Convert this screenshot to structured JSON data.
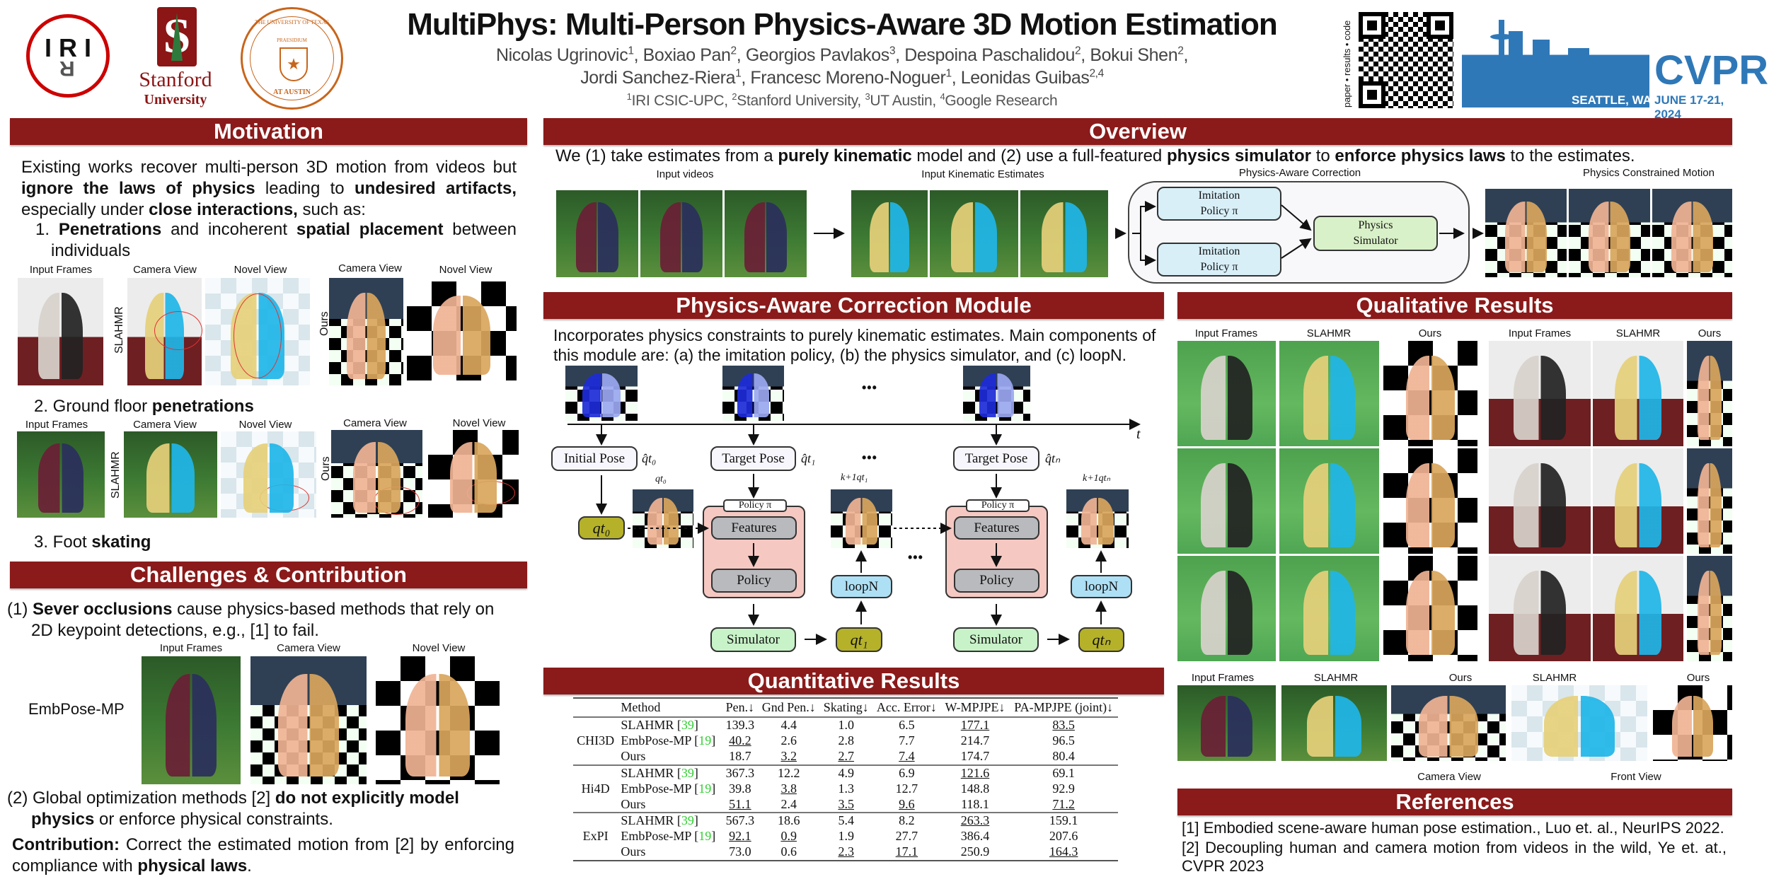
{
  "header": {
    "title": "MultiPhys: Multi-Person Physics-Aware 3D Motion Estimation",
    "authors_line1": [
      {
        "t": "Nicolas Ugrinovic"
      },
      {
        "t": "1",
        "sup": true
      },
      {
        "t": ", Boxiao Pan"
      },
      {
        "t": "2",
        "sup": true
      },
      {
        "t": ", Georgios Pavlakos"
      },
      {
        "t": "3",
        "sup": true
      },
      {
        "t": ", Despoina Paschalidou"
      },
      {
        "t": "2",
        "sup": true
      },
      {
        "t": ", Bokui Shen"
      },
      {
        "t": "2",
        "sup": true
      },
      {
        "t": ","
      }
    ],
    "authors_line2": [
      {
        "t": "Jordi Sanchez-Riera"
      },
      {
        "t": "1",
        "sup": true
      },
      {
        "t": ", Francesc Moreno-Noguer"
      },
      {
        "t": "1",
        "sup": true
      },
      {
        "t": ", Leonidas Guibas"
      },
      {
        "t": "2,4",
        "sup": true
      }
    ],
    "affiliations": [
      {
        "t": "1",
        "sup": true
      },
      {
        "t": "IRI CSIC-UPC, "
      },
      {
        "t": "2",
        "sup": true
      },
      {
        "t": "Stanford University, "
      },
      {
        "t": "3",
        "sup": true
      },
      {
        "t": "UT Austin, "
      },
      {
        "t": "4",
        "sup": true
      },
      {
        "t": "Google Research"
      }
    ],
    "logos": {
      "iri": "IRI",
      "stanford_line1": "Stanford",
      "stanford_line2": "University",
      "ut_ring": "THE UNIVERSITY OF TEXAS",
      "ut_bottom": "AT AUSTIN",
      "ut_motto": "PRAESIDIUM"
    },
    "qr_caption": "paper • results • code",
    "cvpr": {
      "name": "CVPR",
      "city": "SEATTLE, WA",
      "dates": "JUNE 17-21, 2024"
    },
    "colors": {
      "section_bar": "#8b1a1a",
      "cvpr_blue": "#2f78b8",
      "stanford_red": "#8c1515",
      "ut_orange": "#c8651b"
    }
  },
  "motivation": {
    "title": "Motivation",
    "intro": [
      {
        "t": "Existing works recover multi-person 3D motion from videos but "
      },
      {
        "t": "ignore the laws of physics",
        "b": true
      },
      {
        "t": " leading to "
      },
      {
        "t": "undesired artifacts,",
        "b": true
      },
      {
        "t": " especially under "
      },
      {
        "t": "close interactions,",
        "b": true
      },
      {
        "t": " such as:"
      }
    ],
    "item1": [
      {
        "t": "1. "
      },
      {
        "t": "Penetrations",
        "b": true
      },
      {
        "t": " and incoherent "
      },
      {
        "t": "spatial placement",
        "b": true
      },
      {
        "t": " between individuals"
      }
    ],
    "row1_labels": [
      "Input Frames",
      "Camera View",
      "Novel View",
      "Camera View",
      "Novel View"
    ],
    "item2": [
      {
        "t": "2. Ground floor "
      },
      {
        "t": "penetrations",
        "b": true
      }
    ],
    "row2_labels": [
      "Input Frames",
      "Camera View",
      "Novel View",
      "Camera View",
      "Novel View"
    ],
    "side_slahmr": "SLAHMR",
    "side_ours": "Ours",
    "item3": [
      {
        "t": "3. Foot "
      },
      {
        "t": "skating",
        "b": true
      }
    ]
  },
  "challenges": {
    "title": "Challenges & Contribution",
    "c1": [
      {
        "t": "(1) "
      },
      {
        "t": "Sever occlusions",
        "b": true
      },
      {
        "t": " cause physics-based methods that rely on 2D keypoint detections, e.g., [1] to fail."
      }
    ],
    "labels": [
      "Input Frames",
      "Camera View",
      "Novel View"
    ],
    "method_label": "EmbPose-MP",
    "c2": [
      {
        "t": "(2) Global optimization methods [2] "
      },
      {
        "t": "do not explicitly model physics",
        "b": true
      },
      {
        "t": " or enforce physical constraints."
      }
    ],
    "contribution": [
      {
        "t": "Contribution:",
        "b": true
      },
      {
        "t": " Correct the estimated motion from [2] by enforcing compliance with "
      },
      {
        "t": "physical laws",
        "b": true
      },
      {
        "t": "."
      }
    ]
  },
  "overview": {
    "title": "Overview",
    "text": [
      {
        "t": "We (1) take estimates from a "
      },
      {
        "t": "purely kinematic",
        "b": true
      },
      {
        "t": " model and (2) use a full-featured "
      },
      {
        "t": "physics simulator",
        "b": true
      },
      {
        "t": " to "
      },
      {
        "t": "enforce physics laws",
        "b": true
      },
      {
        "t": " to the estimates."
      }
    ],
    "labels": [
      "Input videos",
      "Input Kinematic Estimates",
      "Physics-Aware Correction",
      "Physics Constrained Motion"
    ],
    "imitation_policy": [
      "Imitation",
      "Policy π"
    ],
    "physics_simulator": [
      "Physics",
      "Simulator"
    ]
  },
  "pacm": {
    "title": "Physics-Aware Correction Module",
    "text": "Incorporates physics constraints to purely kinematic estimates. Main components of this module are: (a) the imitation policy, (b) the physics simulator, and (c) loopN.",
    "time_axis": "t",
    "ellipsis": "•••",
    "initial_pose": "Initial Pose",
    "target_pose": "Target Pose",
    "policy_tab": "Policy π",
    "features": "Features",
    "policy": "Policy",
    "loopn": "loopN",
    "simulator": "Simulator",
    "q_hat_t0": "q̂t₀",
    "q_hat_t1": "q̂t₁",
    "q_hat_tn": "q̂tₙ",
    "q_t0_label": "qt₀",
    "q_t0": "qt₀",
    "q_t1": "qt₁",
    "q_tn": "qtₙ",
    "kq_t1": "k+1qt₁",
    "kq_tn": "k+1qtₙ",
    "colors": {
      "q_box": "#b5b22a",
      "policy_panel": "#f6c8c2",
      "gray_box": "#b8babd",
      "loopn": "#aee0f5",
      "simulator": "#c8f2c8",
      "pose_box": "#f7f6fd"
    }
  },
  "quantitative": {
    "title": "Quantitative Results",
    "headers": [
      "",
      "Method",
      "Pen.↓",
      "Gnd Pen.↓",
      "Skating↓",
      "Acc. Error↓",
      "W-MPJPE↓",
      "PA-MPJPE (joint)↓"
    ],
    "groups": [
      {
        "dataset": "CHI3D",
        "rows": [
          {
            "method": "SLAHMR",
            "cite": "39",
            "values": [
              {
                "v": "139.3"
              },
              {
                "v": "4.4"
              },
              {
                "v": "1.0",
                "b": true
              },
              {
                "v": "6.5",
                "b": true
              },
              {
                "v": "177.1",
                "u": true
              },
              {
                "v": "83.5",
                "u": true
              }
            ]
          },
          {
            "method": "EmbPose-MP",
            "cite": "19",
            "values": [
              {
                "v": "40.2",
                "u": true
              },
              {
                "v": "2.6",
                "b": true
              },
              {
                "v": "2.8"
              },
              {
                "v": "7.7"
              },
              {
                "v": "214.7"
              },
              {
                "v": "96.5"
              }
            ]
          },
          {
            "method": "Ours",
            "cite": "",
            "values": [
              {
                "v": "18.7",
                "b": true
              },
              {
                "v": "3.2",
                "u": true
              },
              {
                "v": "2.7",
                "u": true
              },
              {
                "v": "7.4",
                "u": true
              },
              {
                "v": "174.7",
                "b": true
              },
              {
                "v": "80.4",
                "b": true
              }
            ]
          }
        ]
      },
      {
        "dataset": "Hi4D",
        "rows": [
          {
            "method": "SLAHMR",
            "cite": "39",
            "values": [
              {
                "v": "367.3"
              },
              {
                "v": "12.2"
              },
              {
                "v": "4.9"
              },
              {
                "v": "6.9",
                "b": true
              },
              {
                "v": "121.6",
                "u": true
              },
              {
                "v": "69.1",
                "b": true
              }
            ]
          },
          {
            "method": "EmbPose-MP",
            "cite": "19",
            "values": [
              {
                "v": "39.8",
                "b": true
              },
              {
                "v": "3.8",
                "u": true
              },
              {
                "v": "1.3",
                "b": true
              },
              {
                "v": "12.7"
              },
              {
                "v": "148.8"
              },
              {
                "v": "92.9"
              }
            ]
          },
          {
            "method": "Ours",
            "cite": "",
            "values": [
              {
                "v": "51.1",
                "u": true
              },
              {
                "v": "2.4",
                "b": true
              },
              {
                "v": "3.5",
                "u": true
              },
              {
                "v": "9.6",
                "u": true
              },
              {
                "v": "118.1",
                "b": true
              },
              {
                "v": "71.2",
                "u": true
              }
            ]
          }
        ]
      },
      {
        "dataset": "ExPI",
        "rows": [
          {
            "method": "SLAHMR",
            "cite": "39",
            "values": [
              {
                "v": "567.3"
              },
              {
                "v": "18.6"
              },
              {
                "v": "5.4"
              },
              {
                "v": "8.2",
                "b": true
              },
              {
                "v": "263.3",
                "u": true
              },
              {
                "v": "159.1",
                "b": true
              }
            ]
          },
          {
            "method": "EmbPose-MP",
            "cite": "19",
            "values": [
              {
                "v": "92.1",
                "u": true
              },
              {
                "v": "0.9",
                "u": true
              },
              {
                "v": "1.9",
                "b": true
              },
              {
                "v": "27.7"
              },
              {
                "v": "386.4"
              },
              {
                "v": "207.6"
              }
            ]
          },
          {
            "method": "Ours",
            "cite": "",
            "values": [
              {
                "v": "73.0",
                "b": true
              },
              {
                "v": "0.6",
                "b": true
              },
              {
                "v": "2.3",
                "u": true
              },
              {
                "v": "17.1",
                "u": true
              },
              {
                "v": "250.9",
                "b": true
              },
              {
                "v": "164.3",
                "u": true
              }
            ]
          }
        ]
      }
    ]
  },
  "qualitative": {
    "title": "Qualitative Results",
    "grid_labels": [
      "Input Frames",
      "SLAHMR",
      "Ours",
      "Input Frames",
      "SLAHMR",
      "Ours"
    ],
    "bottom_labels": [
      "Input Frames",
      "SLAHMR",
      "Ours",
      "SLAHMR",
      "Ours"
    ],
    "camera_view": "Camera View",
    "front_view": "Front View"
  },
  "references": {
    "title": "References",
    "items": [
      "[1] Embodied scene-aware human pose estimation., Luo et. al., NeurIPS 2022.",
      "[2] Decoupling human and camera motion from videos in the wild, Ye et. at., CVPR 2023"
    ]
  }
}
